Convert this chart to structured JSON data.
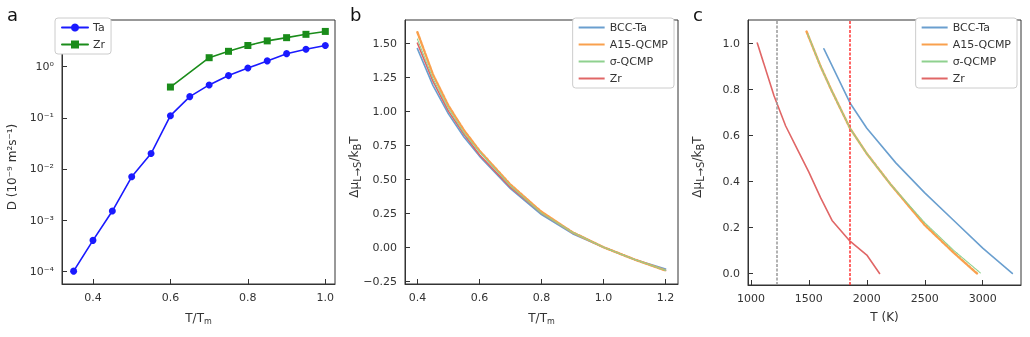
{
  "chart_data": [
    {
      "type": "line",
      "title": "a",
      "xlabel": "T/T$_{m}$",
      "ylabel": "D (10⁻⁹ m²s⁻¹)",
      "log": "y",
      "xlim": [
        0.32,
        1.025
      ],
      "xticks": [
        0.4,
        0.6,
        0.8,
        {
          "value": 1,
          "label": "1.0"
        }
      ],
      "ylim": [
        5.6e-05,
        8.2
      ],
      "yticks": [
        {
          "value": 0.0001,
          "label": "10⁻⁴"
        },
        {
          "value": 0.001,
          "label": "10⁻³"
        },
        {
          "value": 0.01,
          "label": "10⁻²"
        },
        {
          "value": 0.1,
          "label": "10⁻¹"
        },
        {
          "value": 1,
          "label": "10⁰"
        }
      ],
      "legend": "top left",
      "series": [
        {
          "name": "Ta",
          "color": "#1a1aff",
          "marker": "circle",
          "x": [
            0.35,
            0.4,
            0.45,
            0.5,
            0.55,
            0.6,
            0.65,
            0.7,
            0.75,
            0.8,
            0.85,
            0.9,
            0.95,
            1.0
          ],
          "values": [
            0.0001,
            0.0004,
            0.0015,
            0.007,
            0.02,
            0.11,
            0.26,
            0.44,
            0.67,
            0.94,
            1.3,
            1.8,
            2.2,
            2.6
          ]
        },
        {
          "name": "Zr",
          "color": "#1a8c1a",
          "marker": "square",
          "x": [
            0.6,
            0.7,
            0.75,
            0.8,
            0.85,
            0.9,
            0.95,
            1.0
          ],
          "values": [
            0.4,
            1.5,
            2.0,
            2.6,
            3.2,
            3.7,
            4.3,
            4.9
          ]
        }
      ]
    },
    {
      "type": "line",
      "title": "b",
      "xlabel": "T/T$_{m}$",
      "ylabel": "Δμ$_{L→S}$/k$_{B}$T",
      "xlim": [
        0.36,
        1.24
      ],
      "xticks": [
        0.4,
        0.6,
        0.8,
        {
          "value": 1,
          "label": "1.0"
        },
        1.2
      ],
      "ylim": [
        -0.27,
        1.67
      ],
      "yticks": [
        {
          "value": -0.25,
          "label": "−0.25"
        },
        {
          "value": 0,
          "label": "0.00"
        },
        {
          "value": 0.25,
          "label": "0.25"
        },
        {
          "value": 0.5,
          "label": "0.50"
        },
        {
          "value": 0.75,
          "label": "0.75"
        },
        {
          "value": 1,
          "label": "1.00"
        },
        {
          "value": 1.25,
          "label": "1.25"
        },
        {
          "value": 1.5,
          "label": "1.50"
        }
      ],
      "legend": "top right",
      "series": [
        {
          "name": "BCC-Ta",
          "color": "#6a9fcf",
          "line_style": "solid",
          "x": [
            0.4,
            0.45,
            0.5,
            0.55,
            0.6,
            0.7,
            0.8,
            0.9,
            1.0,
            1.1,
            1.2
          ],
          "values": [
            1.46,
            1.19,
            0.98,
            0.81,
            0.67,
            0.43,
            0.24,
            0.1,
            0,
            -0.09,
            -0.16
          ]
        },
        {
          "name": "A15-QCMP",
          "color": "#f9a04d",
          "line_style": "dashed",
          "x": [
            0.4,
            0.45,
            0.5,
            0.55,
            0.6,
            0.7,
            0.8,
            0.9,
            1.0,
            1.1,
            1.2
          ],
          "values": [
            1.58,
            1.27,
            1.04,
            0.86,
            0.71,
            0.46,
            0.26,
            0.11,
            0,
            -0.09,
            -0.17
          ]
        },
        {
          "name": "σ-QCMP",
          "color": "#8fd18f",
          "line_style": "dotted",
          "x": [
            0.4,
            0.45,
            0.5,
            0.55,
            0.6,
            0.7,
            0.8,
            0.9,
            1.0,
            1.1,
            1.2
          ],
          "values": [
            1.53,
            1.24,
            1.02,
            0.84,
            0.7,
            0.45,
            0.25,
            0.11,
            0,
            -0.09,
            -0.17
          ]
        },
        {
          "name": "Zr",
          "color": "#e06666",
          "line_style": "solid",
          "x": [
            0.4,
            0.45,
            0.5,
            0.55,
            0.6,
            0.7,
            0.8,
            0.9,
            1.0,
            1.1,
            1.2
          ],
          "values": [
            1.5,
            1.22,
            1.0,
            0.83,
            0.68,
            0.44,
            0.25,
            0.11,
            0,
            -0.09,
            -0.17
          ]
        }
      ]
    },
    {
      "type": "line",
      "title": "c",
      "xlabel": "T (K)",
      "ylabel": "Δμ$_{L→S}$/k$_{B}$T",
      "xlim": [
        975,
        3330
      ],
      "xticks": [
        1000,
        1500,
        2000,
        2500,
        3000
      ],
      "ylim": [
        -0.05,
        1.1
      ],
      "yticks": [
        {
          "value": 0,
          "label": "0.0"
        },
        {
          "value": 0.2,
          "label": "0.2"
        },
        {
          "value": 0.4,
          "label": "0.4"
        },
        {
          "value": 0.6,
          "label": "0.6"
        },
        {
          "value": 0.8,
          "label": "0.8"
        },
        {
          "value": 1,
          "label": "1.0"
        }
      ],
      "legend": "top right",
      "ref_lines": [
        {
          "axis": "x",
          "value": 1220,
          "label": null,
          "color": "#999999",
          "line_style": "dashed"
        },
        {
          "axis": "x",
          "value": 1855,
          "label": null,
          "color": "#ff3333",
          "line_style": "dashed"
        }
      ],
      "series": [
        {
          "name": "BCC-Ta",
          "color": "#6a9fcf",
          "line_style": "solid",
          "x": [
            1630,
            1855,
            2000,
            2250,
            2500,
            2750,
            3000,
            3255
          ],
          "values": [
            0.975,
            0.74,
            0.63,
            0.48,
            0.35,
            0.23,
            0.11,
            0
          ]
        },
        {
          "name": "A15-QCMP",
          "color": "#f9a04d",
          "line_style": "dashed",
          "x": [
            1480,
            1600,
            1700,
            1855,
            2000,
            2200,
            2500,
            2750,
            2950
          ],
          "values": [
            1.05,
            0.9,
            0.79,
            0.63,
            0.52,
            0.39,
            0.21,
            0.09,
            0
          ]
        },
        {
          "name": "σ-QCMP",
          "color": "#8fd18f",
          "line_style": "dotted",
          "x": [
            1490,
            1600,
            1700,
            1855,
            2000,
            2200,
            2500,
            2750,
            2985
          ],
          "values": [
            1.04,
            0.9,
            0.79,
            0.63,
            0.52,
            0.39,
            0.22,
            0.1,
            0
          ]
        },
        {
          "name": "Zr",
          "color": "#e06666",
          "line_style": "solid",
          "x": [
            1055,
            1200,
            1300,
            1400,
            1500,
            1600,
            1700,
            1855,
            2000,
            2110
          ],
          "values": [
            1.0,
            0.77,
            0.64,
            0.54,
            0.44,
            0.33,
            0.23,
            0.14,
            0.08,
            0
          ]
        }
      ]
    }
  ]
}
